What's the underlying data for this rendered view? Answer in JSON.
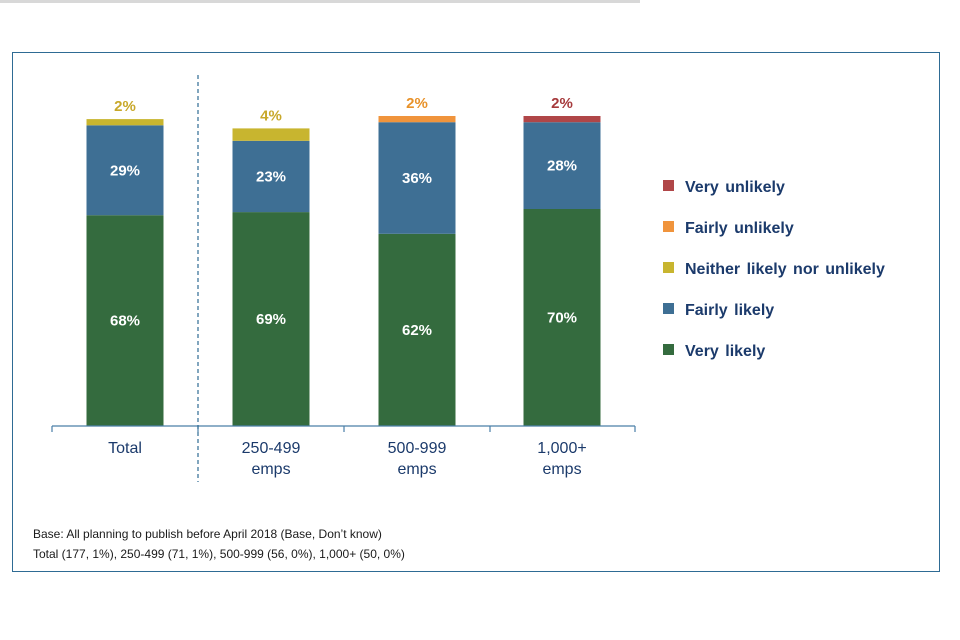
{
  "chart_data": {
    "type": "bar",
    "stacked": true,
    "title": "",
    "xlabel": "",
    "ylabel": "",
    "ylim": [
      0,
      100
    ],
    "categories": [
      [
        "Total"
      ],
      [
        "250-499",
        "emps"
      ],
      [
        "500-999",
        "emps"
      ],
      [
        "1,000+",
        "emps"
      ]
    ],
    "series": [
      {
        "name": "Very likely",
        "color": "#346b3e",
        "label_color": "#ffffff",
        "values": [
          68,
          69,
          62,
          70
        ]
      },
      {
        "name": "Fairly likely",
        "color": "#3e6f94",
        "label_color": "#ffffff",
        "values": [
          29,
          23,
          36,
          28
        ]
      },
      {
        "name": "Neither likely nor unlikely",
        "color": "#c8b52f",
        "label_color": "#c8a82a",
        "values": [
          2,
          4,
          0,
          0
        ]
      },
      {
        "name": "Fairly unlikely",
        "color": "#f0943c",
        "label_color": "#e8922a",
        "values": [
          0,
          0,
          2,
          0
        ]
      },
      {
        "name": "Very unlikely",
        "color": "#b04648",
        "label_color": "#a63a3c",
        "values": [
          0,
          0,
          0,
          2
        ]
      }
    ],
    "legend_order": [
      "Very unlikely",
      "Fairly unlikely",
      "Neither likely nor unlikely",
      "Fairly likely",
      "Very likely"
    ],
    "legend_text_color": "#1b3a6b",
    "legend_position": "right",
    "divider_after_category": 0,
    "grid": false
  },
  "footnote": {
    "line1": "Base: All planning to publish before April 2018 (Base, Don’t know)",
    "line2": "Total (177, 1%), 250-499 (71, 1%), 500-999 (56, 0%), 1,000+ (50, 0%)"
  }
}
